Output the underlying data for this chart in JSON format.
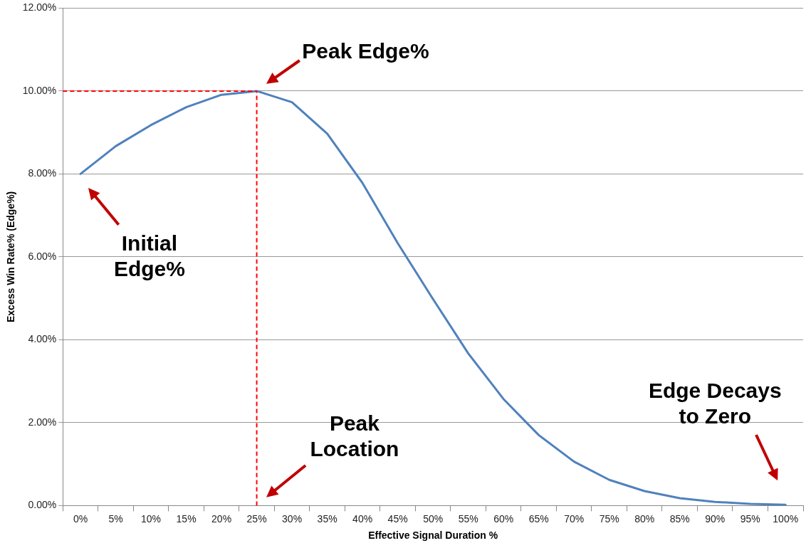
{
  "chart_data": {
    "type": "line",
    "xlabel": "Effective Signal Duration %",
    "ylabel": "Excess Win Rate% (Edge%)",
    "categories": [
      "0%",
      "5%",
      "10%",
      "15%",
      "20%",
      "25%",
      "30%",
      "35%",
      "40%",
      "45%",
      "50%",
      "55%",
      "60%",
      "65%",
      "70%",
      "75%",
      "80%",
      "85%",
      "90%",
      "95%",
      "100%"
    ],
    "series": [
      {
        "color": "#4f81bd",
        "values": [
          8.0,
          8.67,
          9.18,
          9.61,
          9.91,
          10.0,
          9.73,
          8.97,
          7.78,
          6.33,
          4.98,
          3.67,
          2.57,
          1.7,
          1.06,
          0.62,
          0.35,
          0.18,
          0.09,
          0.04,
          0.02
        ]
      }
    ],
    "ylim": [
      0,
      12
    ],
    "yticks": [
      {
        "value": 0,
        "label": "0.00%"
      },
      {
        "value": 2,
        "label": "2.00%"
      },
      {
        "value": 4,
        "label": "4.00%"
      },
      {
        "value": 6,
        "label": "6.00%"
      },
      {
        "value": 8,
        "label": "8.00%"
      },
      {
        "value": 10,
        "label": "10.00%"
      },
      {
        "value": 12,
        "label": "12.00%"
      }
    ],
    "grid": "y",
    "legend": false,
    "marker": "none",
    "line_style": "solid",
    "ref_lines": [
      {
        "axis": "y",
        "value": 10,
        "color": "#ff0000",
        "line_style": "dashed"
      },
      {
        "axis": "x",
        "value": "25%",
        "color": "#ff0000",
        "line_style": "dashed"
      }
    ],
    "annotations": [
      "Peak Edge%",
      "Initial Edge%",
      "Peak Location",
      "Edge Decays to Zero"
    ]
  }
}
